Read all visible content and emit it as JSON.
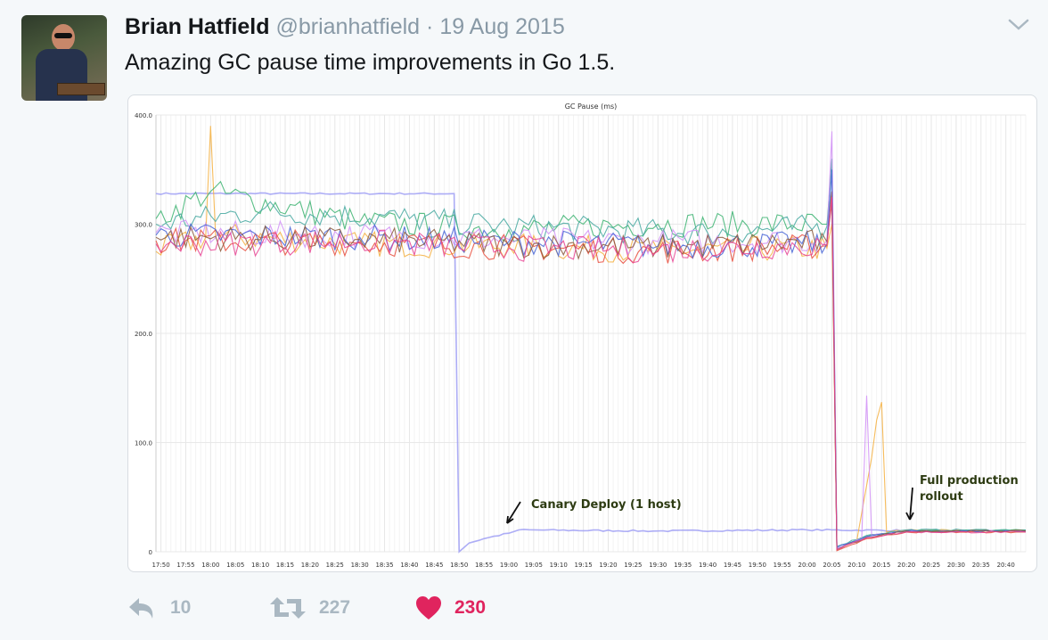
{
  "tweet": {
    "author_name": "Brian Hatfield",
    "handle": "@brianhatfield",
    "separator": "·",
    "date": "19 Aug 2015",
    "text": "Amazing GC pause time improvements in Go 1.5.",
    "menu_icon": "chevron-down-icon"
  },
  "actions": {
    "reply": {
      "icon": "reply-icon",
      "count": "10"
    },
    "retweet": {
      "icon": "retweet-icon",
      "count": "227"
    },
    "like": {
      "icon": "heart-icon",
      "count": "230",
      "color": "#e0245e",
      "liked": true
    }
  },
  "colors": {
    "background": "#f5f8fa",
    "muted": "#aab8c2",
    "like": "#e0245e"
  },
  "chart_data": {
    "type": "line",
    "title": "GC Pause (ms)",
    "xlabel": "",
    "ylabel": "",
    "ylim": [
      0,
      400
    ],
    "xlim": [
      "17:49",
      "20:44"
    ],
    "yticks": [
      "400.0",
      "300.0",
      "200.0",
      "100.0",
      "0"
    ],
    "xticks": [
      "17:50",
      "17:55",
      "18:00",
      "18:05",
      "18:10",
      "18:15",
      "18:20",
      "18:25",
      "18:30",
      "18:35",
      "18:40",
      "18:45",
      "18:50",
      "18:55",
      "19:00",
      "19:05",
      "19:10",
      "19:15",
      "19:20",
      "19:25",
      "19:30",
      "19:35",
      "19:40",
      "19:45",
      "19:50",
      "19:55",
      "20:00",
      "20:05",
      "20:10",
      "20:15",
      "20:20",
      "20:25",
      "20:30",
      "20:35",
      "20:40"
    ],
    "grid": true,
    "legend": "none",
    "annotations": [
      {
        "text": "Canary Deploy (1 host)",
        "x": "18:57",
        "y": 18,
        "color": "#2d3b12"
      },
      {
        "text": "Full production",
        "text2": "rollout",
        "x": "20:20",
        "y": 20,
        "color": "#2d3b12"
      }
    ],
    "series": [
      {
        "color": "#9f9ff5",
        "points": [
          [
            "17:49",
            328
          ],
          [
            "18:49",
            328
          ],
          [
            "18:50",
            0
          ],
          [
            "18:52",
            8
          ],
          [
            "18:55",
            12
          ],
          [
            "19:00",
            17
          ],
          [
            "19:02",
            20
          ],
          [
            "19:30",
            19
          ],
          [
            "20:00",
            20
          ],
          [
            "20:44",
            19
          ]
        ]
      },
      {
        "color": "#f5b041",
        "points": [
          [
            "17:49",
            275
          ],
          [
            "17:59",
            288
          ],
          [
            "18:00",
            390
          ],
          [
            "18:01",
            290
          ],
          [
            "18:30",
            282
          ],
          [
            "19:00",
            280
          ],
          [
            "19:30",
            276
          ],
          [
            "20:04",
            278
          ],
          [
            "20:05",
            300
          ],
          [
            "20:06",
            2
          ],
          [
            "20:10",
            10
          ],
          [
            "20:15",
            137
          ],
          [
            "20:16",
            18
          ],
          [
            "20:20",
            20
          ],
          [
            "20:44",
            19
          ]
        ]
      },
      {
        "color": "#3cb371",
        "points": [
          [
            "17:49",
            305
          ],
          [
            "18:00",
            330
          ],
          [
            "18:30",
            302
          ],
          [
            "19:00",
            295
          ],
          [
            "19:30",
            300
          ],
          [
            "20:04",
            300
          ],
          [
            "20:05",
            330
          ],
          [
            "20:06",
            3
          ],
          [
            "20:12",
            14
          ],
          [
            "20:20",
            19
          ],
          [
            "20:44",
            20
          ]
        ]
      },
      {
        "color": "#45a8a0",
        "points": [
          [
            "17:49",
            300
          ],
          [
            "18:10",
            312
          ],
          [
            "18:40",
            305
          ],
          [
            "19:00",
            298
          ],
          [
            "19:40",
            292
          ],
          [
            "20:04",
            298
          ],
          [
            "20:05",
            360
          ],
          [
            "20:06",
            5
          ],
          [
            "20:12",
            15
          ],
          [
            "20:20",
            20
          ],
          [
            "20:44",
            20
          ]
        ]
      },
      {
        "color": "#d18ff7",
        "points": [
          [
            "17:49",
            292
          ],
          [
            "18:30",
            290
          ],
          [
            "19:00",
            286
          ],
          [
            "19:30",
            284
          ],
          [
            "20:04",
            285
          ],
          [
            "20:05",
            385
          ],
          [
            "20:06",
            3
          ],
          [
            "20:11",
            12
          ],
          [
            "20:12",
            143
          ],
          [
            "20:13",
            15
          ],
          [
            "20:20",
            19
          ],
          [
            "20:44",
            19
          ]
        ]
      },
      {
        "color": "#e74c3c",
        "points": [
          [
            "17:49",
            285
          ],
          [
            "18:30",
            283
          ],
          [
            "19:00",
            279
          ],
          [
            "19:30",
            275
          ],
          [
            "20:04",
            280
          ],
          [
            "20:05",
            330
          ],
          [
            "20:06",
            1
          ],
          [
            "20:12",
            12
          ],
          [
            "20:20",
            18
          ],
          [
            "20:44",
            18
          ]
        ]
      },
      {
        "color": "#4463d6",
        "points": [
          [
            "17:49",
            290
          ],
          [
            "18:30",
            288
          ],
          [
            "19:00",
            284
          ],
          [
            "19:30",
            280
          ],
          [
            "20:04",
            282
          ],
          [
            "20:05",
            350
          ],
          [
            "20:06",
            4
          ],
          [
            "20:12",
            14
          ],
          [
            "20:20",
            19
          ],
          [
            "20:44",
            19
          ]
        ]
      },
      {
        "color": "#8b5a3c",
        "points": [
          [
            "17:49",
            288
          ],
          [
            "18:30",
            286
          ],
          [
            "19:00",
            281
          ],
          [
            "19:30",
            279
          ],
          [
            "20:04",
            284
          ],
          [
            "20:05",
            320
          ],
          [
            "20:06",
            2
          ],
          [
            "20:12",
            13
          ],
          [
            "20:20",
            19
          ],
          [
            "20:44",
            19
          ]
        ]
      },
      {
        "color": "#e84393",
        "points": [
          [
            "17:49",
            282
          ],
          [
            "18:30",
            284
          ],
          [
            "19:00",
            278
          ],
          [
            "19:30",
            276
          ],
          [
            "20:04",
            281
          ],
          [
            "20:05",
            325
          ],
          [
            "20:06",
            2
          ],
          [
            "20:12",
            13
          ],
          [
            "20:20",
            18
          ],
          [
            "20:44",
            18
          ]
        ]
      }
    ]
  }
}
